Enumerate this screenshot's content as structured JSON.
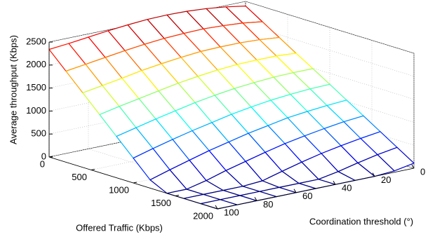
{
  "chart_data": {
    "type": "surface",
    "xlabel": "Offered Traffic (Kbps)",
    "ylabel": "Coordination threshold (°)",
    "zlabel": "Average throughput (Kbps)",
    "x": [
      0,
      200,
      400,
      600,
      800,
      1000,
      1200,
      1400,
      1600,
      1800,
      2000
    ],
    "y": [
      0,
      10,
      20,
      30,
      40,
      50,
      60,
      70,
      80,
      90,
      100
    ],
    "z": [
      [
        2400,
        2470,
        2520,
        2550,
        2560,
        2550,
        2520,
        2480,
        2430,
        2380,
        2340
      ],
      [
        2170,
        2230,
        2260,
        2280,
        2270,
        2250,
        2210,
        2160,
        2100,
        2040,
        1980
      ],
      [
        1940,
        1980,
        2000,
        2000,
        1990,
        1950,
        1900,
        1840,
        1760,
        1690,
        1620
      ],
      [
        1710,
        1740,
        1740,
        1730,
        1700,
        1650,
        1590,
        1510,
        1430,
        1350,
        1260
      ],
      [
        1490,
        1490,
        1480,
        1450,
        1410,
        1350,
        1280,
        1190,
        1100,
        1000,
        900
      ],
      [
        1260,
        1250,
        1220,
        1180,
        1120,
        1050,
        960,
        870,
        770,
        660,
        540
      ],
      [
        1030,
        1000,
        960,
        910,
        830,
        750,
        650,
        550,
        430,
        310,
        180
      ],
      [
        800,
        760,
        700,
        630,
        550,
        450,
        340,
        230,
        100,
        0,
        0
      ],
      [
        570,
        510,
        440,
        360,
        260,
        150,
        30,
        0,
        0,
        0,
        0
      ],
      [
        340,
        270,
        180,
        80,
        0,
        0,
        0,
        0,
        0,
        0,
        0
      ],
      [
        110,
        30,
        0,
        0,
        0,
        0,
        0,
        0,
        0,
        0,
        0
      ]
    ],
    "xlim": [
      0,
      2000
    ],
    "xticks": [
      0,
      500,
      1000,
      1500,
      2000
    ],
    "ylim": [
      0,
      100
    ],
    "yticks": [
      0,
      20,
      40,
      60,
      80,
      100
    ],
    "zlim": [
      0,
      2500
    ],
    "zticks": [
      0,
      500,
      1000,
      1500,
      2000,
      2500
    ],
    "grid": true,
    "colormap": "jet"
  }
}
